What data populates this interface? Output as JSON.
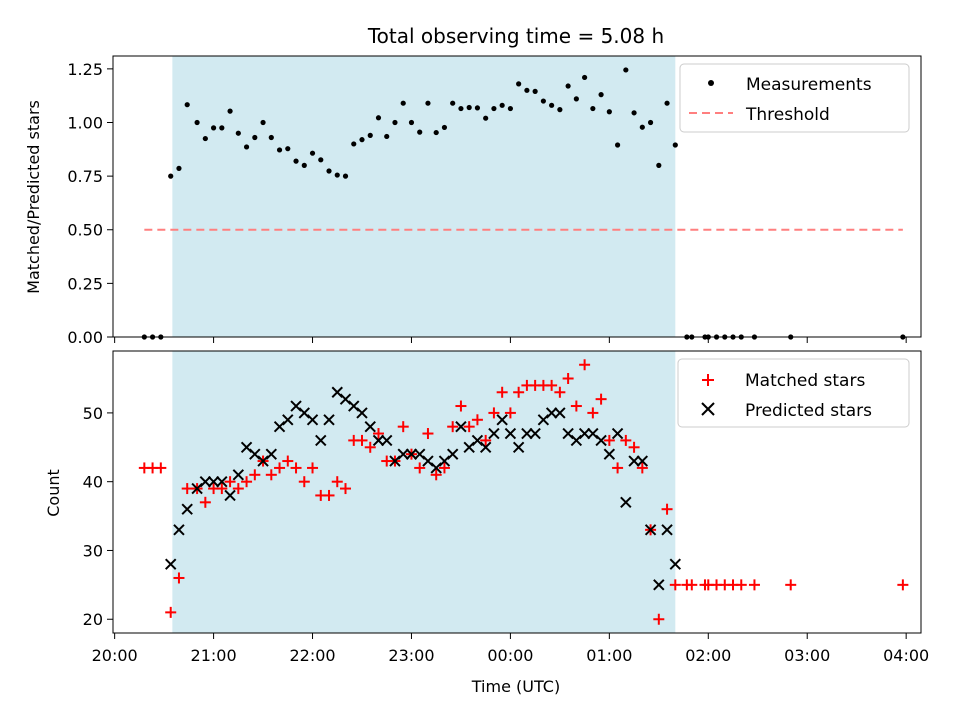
{
  "title": "Total observing time = 5.08 h",
  "xlabel": "Time (UTC)",
  "x_tick_labels": [
    "20:00",
    "21:00",
    "22:00",
    "23:00",
    "00:00",
    "01:00",
    "02:00",
    "03:00",
    "04:00"
  ],
  "colors": {
    "shade": "#add8e6",
    "threshold": "#ff7f7f",
    "measurements": "#000000",
    "matched": "#ff0000",
    "predicted": "#000000"
  },
  "chart_data": [
    {
      "type": "scatter",
      "panel": "top",
      "ylabel": "Matched/Predicted stars",
      "xlim": [
        "19:59",
        "04:09"
      ],
      "ylim": [
        0,
        1.31
      ],
      "y_ticks": [
        0.0,
        0.25,
        0.5,
        0.75,
        1.0,
        1.25
      ],
      "y_tick_labels": [
        "0.00",
        "0.25",
        "0.50",
        "0.75",
        "1.00",
        "1.25"
      ],
      "shaded_span": [
        "20:35",
        "01:40"
      ],
      "legend": {
        "position": "top-right",
        "entries": [
          "Measurements",
          "Threshold"
        ]
      },
      "threshold": {
        "name": "Threshold",
        "y": 0.5,
        "x_range": [
          "20:18",
          "03:58"
        ],
        "style": "dashed"
      },
      "series": [
        {
          "name": "Measurements",
          "marker": "dot",
          "points": [
            [
              "20:18",
              0
            ],
            [
              "20:23",
              0
            ],
            [
              "20:28",
              0
            ],
            [
              "20:34",
              0.75
            ],
            [
              "20:39",
              0.786
            ],
            [
              "20:44",
              1.083
            ],
            [
              "20:50",
              1.0
            ],
            [
              "20:55",
              0.925
            ],
            [
              "21:00",
              0.975
            ],
            [
              "21:05",
              0.975
            ],
            [
              "21:10",
              1.053
            ],
            [
              "21:15",
              0.95
            ],
            [
              "21:20",
              0.886
            ],
            [
              "21:25",
              0.93
            ],
            [
              "21:30",
              1.0
            ],
            [
              "21:35",
              0.93
            ],
            [
              "21:40",
              0.872
            ],
            [
              "21:45",
              0.878
            ],
            [
              "21:50",
              0.82
            ],
            [
              "21:55",
              0.8
            ],
            [
              "22:00",
              0.857
            ],
            [
              "22:05",
              0.826
            ],
            [
              "22:10",
              0.774
            ],
            [
              "22:15",
              0.755
            ],
            [
              "22:20",
              0.75
            ],
            [
              "22:25",
              0.9
            ],
            [
              "22:30",
              0.92
            ],
            [
              "22:35",
              0.94
            ],
            [
              "22:40",
              1.022
            ],
            [
              "22:45",
              0.935
            ],
            [
              "22:50",
              1.0
            ],
            [
              "22:55",
              1.09
            ],
            [
              "23:00",
              1.0
            ],
            [
              "23:05",
              0.955
            ],
            [
              "23:10",
              1.09
            ],
            [
              "23:15",
              0.953
            ],
            [
              "23:20",
              0.977
            ],
            [
              "23:25",
              1.09
            ],
            [
              "23:30",
              1.065
            ],
            [
              "23:35",
              1.07
            ],
            [
              "23:40",
              1.068
            ],
            [
              "23:45",
              1.02
            ],
            [
              "23:50",
              1.065
            ],
            [
              "23:55",
              1.08
            ],
            [
              "00:00",
              1.065
            ],
            [
              "00:05",
              1.18
            ],
            [
              "00:10",
              1.15
            ],
            [
              "00:15",
              1.145
            ],
            [
              "00:20",
              1.1
            ],
            [
              "00:25",
              1.08
            ],
            [
              "00:30",
              1.06
            ],
            [
              "00:35",
              1.17
            ],
            [
              "00:40",
              1.11
            ],
            [
              "00:45",
              1.21
            ],
            [
              "00:50",
              1.065
            ],
            [
              "00:55",
              1.13
            ],
            [
              "01:00",
              1.05
            ],
            [
              "01:05",
              0.895
            ],
            [
              "01:10",
              1.245
            ],
            [
              "01:15",
              1.045
            ],
            [
              "01:20",
              0.978
            ],
            [
              "01:25",
              1.0
            ],
            [
              "01:30",
              0.8
            ],
            [
              "01:35",
              1.09
            ],
            [
              "01:40",
              0.895
            ],
            [
              "01:47",
              0
            ],
            [
              "01:50",
              0
            ],
            [
              "01:58",
              0
            ],
            [
              "02:00",
              0
            ],
            [
              "02:05",
              0
            ],
            [
              "02:10",
              0
            ],
            [
              "02:15",
              0
            ],
            [
              "02:20",
              0
            ],
            [
              "02:28",
              0
            ],
            [
              "02:50",
              0
            ],
            [
              "03:58",
              0
            ]
          ]
        }
      ]
    },
    {
      "type": "scatter",
      "panel": "bottom",
      "ylabel": "Count",
      "xlim": [
        "19:59",
        "04:09"
      ],
      "ylim": [
        18,
        59
      ],
      "y_ticks": [
        20,
        30,
        40,
        50
      ],
      "y_tick_labels": [
        "20",
        "30",
        "40",
        "50"
      ],
      "shaded_span": [
        "20:35",
        "01:40"
      ],
      "legend": {
        "position": "top-right",
        "entries": [
          "Matched stars",
          "Predicted stars"
        ]
      },
      "series": [
        {
          "name": "Matched stars",
          "marker": "plus",
          "points": [
            [
              "20:18",
              42
            ],
            [
              "20:23",
              42
            ],
            [
              "20:28",
              42
            ],
            [
              "20:34",
              21
            ],
            [
              "20:39",
              26
            ],
            [
              "20:44",
              39
            ],
            [
              "20:50",
              39
            ],
            [
              "20:55",
              37
            ],
            [
              "21:00",
              39
            ],
            [
              "21:05",
              39
            ],
            [
              "21:10",
              40
            ],
            [
              "21:15",
              39
            ],
            [
              "21:20",
              40
            ],
            [
              "21:25",
              41
            ],
            [
              "21:30",
              43
            ],
            [
              "21:35",
              41
            ],
            [
              "21:40",
              42
            ],
            [
              "21:45",
              43
            ],
            [
              "21:50",
              42
            ],
            [
              "21:55",
              40
            ],
            [
              "22:00",
              42
            ],
            [
              "22:05",
              38
            ],
            [
              "22:10",
              38
            ],
            [
              "22:15",
              40
            ],
            [
              "22:20",
              39
            ],
            [
              "22:25",
              46
            ],
            [
              "22:30",
              46
            ],
            [
              "22:35",
              45
            ],
            [
              "22:40",
              47
            ],
            [
              "22:45",
              43
            ],
            [
              "22:50",
              43
            ],
            [
              "22:55",
              48
            ],
            [
              "23:00",
              44
            ],
            [
              "23:05",
              42
            ],
            [
              "23:10",
              47
            ],
            [
              "23:15",
              41
            ],
            [
              "23:20",
              42
            ],
            [
              "23:25",
              48
            ],
            [
              "23:30",
              51
            ],
            [
              "23:35",
              48
            ],
            [
              "23:40",
              49
            ],
            [
              "23:45",
              46
            ],
            [
              "23:50",
              50
            ],
            [
              "23:55",
              53
            ],
            [
              "00:00",
              50
            ],
            [
              "00:05",
              53
            ],
            [
              "00:10",
              54
            ],
            [
              "00:15",
              54
            ],
            [
              "00:20",
              54
            ],
            [
              "00:25",
              54
            ],
            [
              "00:30",
              53
            ],
            [
              "00:35",
              55
            ],
            [
              "00:40",
              51
            ],
            [
              "00:45",
              57
            ],
            [
              "00:50",
              50
            ],
            [
              "00:55",
              52
            ],
            [
              "01:00",
              46
            ],
            [
              "01:05",
              42
            ],
            [
              "01:10",
              46
            ],
            [
              "01:15",
              45
            ],
            [
              "01:20",
              42
            ],
            [
              "01:25",
              33
            ],
            [
              "01:30",
              20
            ],
            [
              "01:35",
              36
            ],
            [
              "01:40",
              25
            ],
            [
              "01:47",
              25
            ],
            [
              "01:50",
              25
            ],
            [
              "01:58",
              25
            ],
            [
              "02:00",
              25
            ],
            [
              "02:05",
              25
            ],
            [
              "02:10",
              25
            ],
            [
              "02:15",
              25
            ],
            [
              "02:20",
              25
            ],
            [
              "02:28",
              25
            ],
            [
              "02:50",
              25
            ],
            [
              "03:58",
              25
            ]
          ]
        },
        {
          "name": "Predicted stars",
          "marker": "x",
          "points": [
            [
              "20:34",
              28
            ],
            [
              "20:39",
              33
            ],
            [
              "20:44",
              36
            ],
            [
              "20:50",
              39
            ],
            [
              "20:55",
              40
            ],
            [
              "21:00",
              40
            ],
            [
              "21:05",
              40
            ],
            [
              "21:10",
              38
            ],
            [
              "21:15",
              41
            ],
            [
              "21:20",
              45
            ],
            [
              "21:25",
              44
            ],
            [
              "21:30",
              43
            ],
            [
              "21:35",
              44
            ],
            [
              "21:40",
              48
            ],
            [
              "21:45",
              49
            ],
            [
              "21:50",
              51
            ],
            [
              "21:55",
              50
            ],
            [
              "22:00",
              49
            ],
            [
              "22:05",
              46
            ],
            [
              "22:10",
              49
            ],
            [
              "22:15",
              53
            ],
            [
              "22:20",
              52
            ],
            [
              "22:25",
              51
            ],
            [
              "22:30",
              50
            ],
            [
              "22:35",
              48
            ],
            [
              "22:40",
              46
            ],
            [
              "22:45",
              46
            ],
            [
              "22:50",
              43
            ],
            [
              "22:55",
              44
            ],
            [
              "23:00",
              44
            ],
            [
              "23:05",
              44
            ],
            [
              "23:10",
              43
            ],
            [
              "23:15",
              42
            ],
            [
              "23:20",
              43
            ],
            [
              "23:25",
              44
            ],
            [
              "23:30",
              48
            ],
            [
              "23:35",
              45
            ],
            [
              "23:40",
              46
            ],
            [
              "23:45",
              45
            ],
            [
              "23:50",
              47
            ],
            [
              "23:55",
              49
            ],
            [
              "00:00",
              47
            ],
            [
              "00:05",
              45
            ],
            [
              "00:10",
              47
            ],
            [
              "00:15",
              47
            ],
            [
              "00:20",
              49
            ],
            [
              "00:25",
              50
            ],
            [
              "00:30",
              50
            ],
            [
              "00:35",
              47
            ],
            [
              "00:40",
              46
            ],
            [
              "00:45",
              47
            ],
            [
              "00:50",
              47
            ],
            [
              "00:55",
              46
            ],
            [
              "01:00",
              44
            ],
            [
              "01:05",
              47
            ],
            [
              "01:10",
              37
            ],
            [
              "01:15",
              43
            ],
            [
              "01:20",
              43
            ],
            [
              "01:25",
              33
            ],
            [
              "01:30",
              25
            ],
            [
              "01:35",
              33
            ],
            [
              "01:40",
              28
            ]
          ]
        }
      ]
    }
  ]
}
